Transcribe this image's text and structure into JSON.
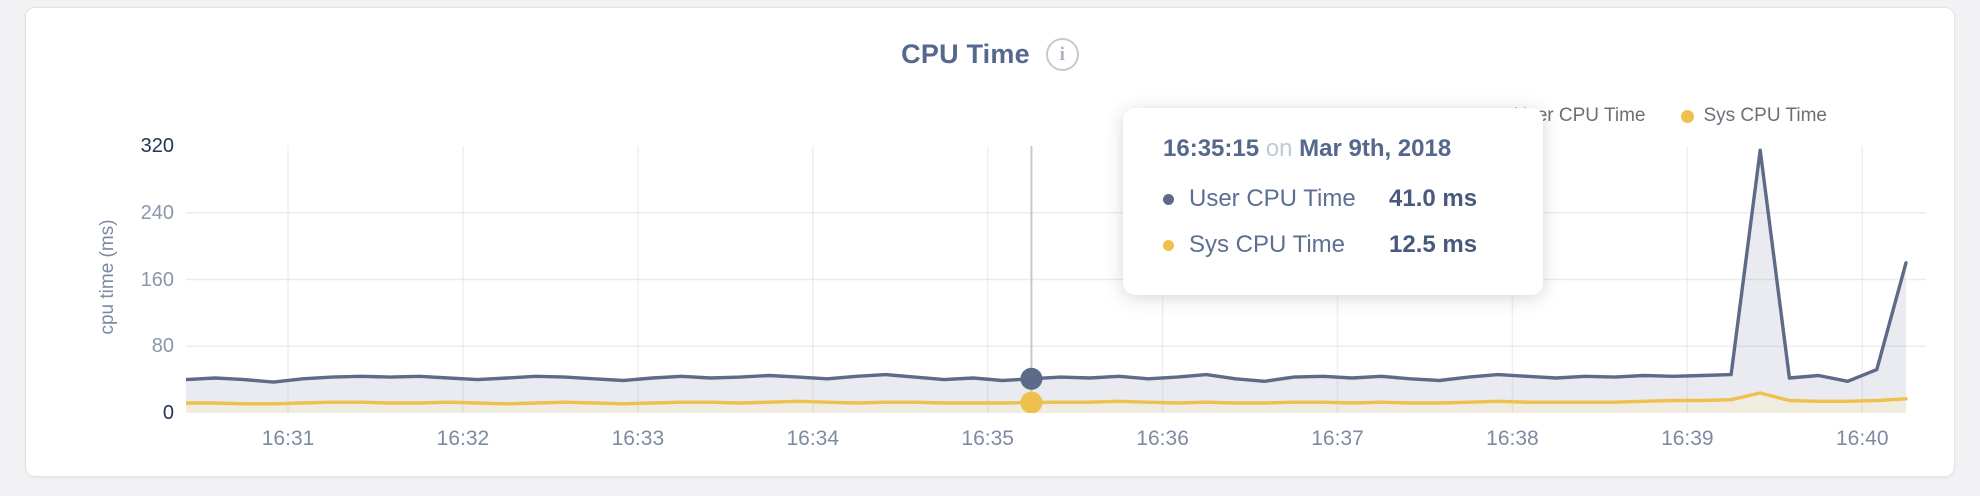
{
  "title": "CPU Time",
  "info_icon_glyph": "i",
  "legend": [
    {
      "label": "User CPU Time",
      "color": "#5d6b88"
    },
    {
      "label": "Sys CPU Time",
      "color": "#eec14f"
    }
  ],
  "y_axis": {
    "label": "cpu time (ms)",
    "ticks": [
      320,
      240,
      160,
      80,
      0
    ],
    "grid_values": [
      240,
      160,
      80
    ]
  },
  "x_axis": {
    "ticks": [
      "16:31",
      "16:32",
      "16:33",
      "16:34",
      "16:35",
      "16:36",
      "16:37",
      "16:38",
      "16:39",
      "16:40"
    ]
  },
  "tooltip": {
    "time": "16:35:15",
    "connector": "on",
    "date": "Mar 9th, 2018",
    "rows": [
      {
        "label": "User CPU Time",
        "value": "41.0 ms",
        "color": "#5d6b88"
      },
      {
        "label": "Sys CPU Time",
        "value": "12.5 ms",
        "color": "#eec14f"
      }
    ]
  },
  "chart_data": {
    "type": "area",
    "title": "CPU Time",
    "ylabel": "cpu time (ms)",
    "ylim": [
      0,
      320
    ],
    "grid": true,
    "legend_position": "top-right",
    "hover_index": 29,
    "hover_line_color": "#c6c8cc",
    "x": [
      "16:30:25",
      "16:30:35",
      "16:30:45",
      "16:30:55",
      "16:31:05",
      "16:31:15",
      "16:31:25",
      "16:31:35",
      "16:31:45",
      "16:31:55",
      "16:32:05",
      "16:32:15",
      "16:32:25",
      "16:32:35",
      "16:32:45",
      "16:32:55",
      "16:33:05",
      "16:33:15",
      "16:33:25",
      "16:33:35",
      "16:33:45",
      "16:33:55",
      "16:34:05",
      "16:34:15",
      "16:34:25",
      "16:34:35",
      "16:34:45",
      "16:34:55",
      "16:35:05",
      "16:35:15",
      "16:35:25",
      "16:35:35",
      "16:35:45",
      "16:35:55",
      "16:36:05",
      "16:36:15",
      "16:36:25",
      "16:36:35",
      "16:36:45",
      "16:36:55",
      "16:37:05",
      "16:37:15",
      "16:37:25",
      "16:37:35",
      "16:37:45",
      "16:37:55",
      "16:38:05",
      "16:38:15",
      "16:38:25",
      "16:38:35",
      "16:38:45",
      "16:38:55",
      "16:39:05",
      "16:39:15",
      "16:39:25",
      "16:39:35",
      "16:39:45",
      "16:39:55",
      "16:40:05",
      "16:40:15"
    ],
    "series": [
      {
        "id": "user",
        "name": "User CPU Time",
        "color": "#5d6b88",
        "fill": "#e9ebf1",
        "values": [
          40,
          42,
          40,
          37,
          41,
          43,
          44,
          43,
          44,
          42,
          40,
          42,
          44,
          43,
          41,
          39,
          42,
          44,
          42,
          43,
          45,
          43,
          41,
          44,
          46,
          43,
          40,
          42,
          39,
          41,
          43,
          42,
          44,
          41,
          43,
          46,
          41,
          38,
          43,
          44,
          42,
          44,
          41,
          39,
          43,
          46,
          44,
          42,
          44,
          43,
          45,
          44,
          45,
          46,
          315,
          42,
          45,
          38,
          52,
          180
        ]
      },
      {
        "id": "sys",
        "name": "Sys CPU Time",
        "color": "#eec14f",
        "fill": "#f0ece0",
        "values": [
          12,
          12,
          11,
          11,
          12,
          13,
          13,
          12,
          12,
          13,
          12,
          11,
          12,
          13,
          12,
          11,
          12,
          13,
          13,
          12,
          13,
          14,
          13,
          12,
          13,
          13,
          12,
          12,
          12,
          12.5,
          13,
          13,
          14,
          13,
          12,
          13,
          12,
          12,
          13,
          13,
          12,
          13,
          12,
          12,
          13,
          14,
          13,
          13,
          13,
          13,
          14,
          15,
          15,
          16,
          24,
          15,
          14,
          14,
          15,
          17
        ]
      }
    ]
  }
}
